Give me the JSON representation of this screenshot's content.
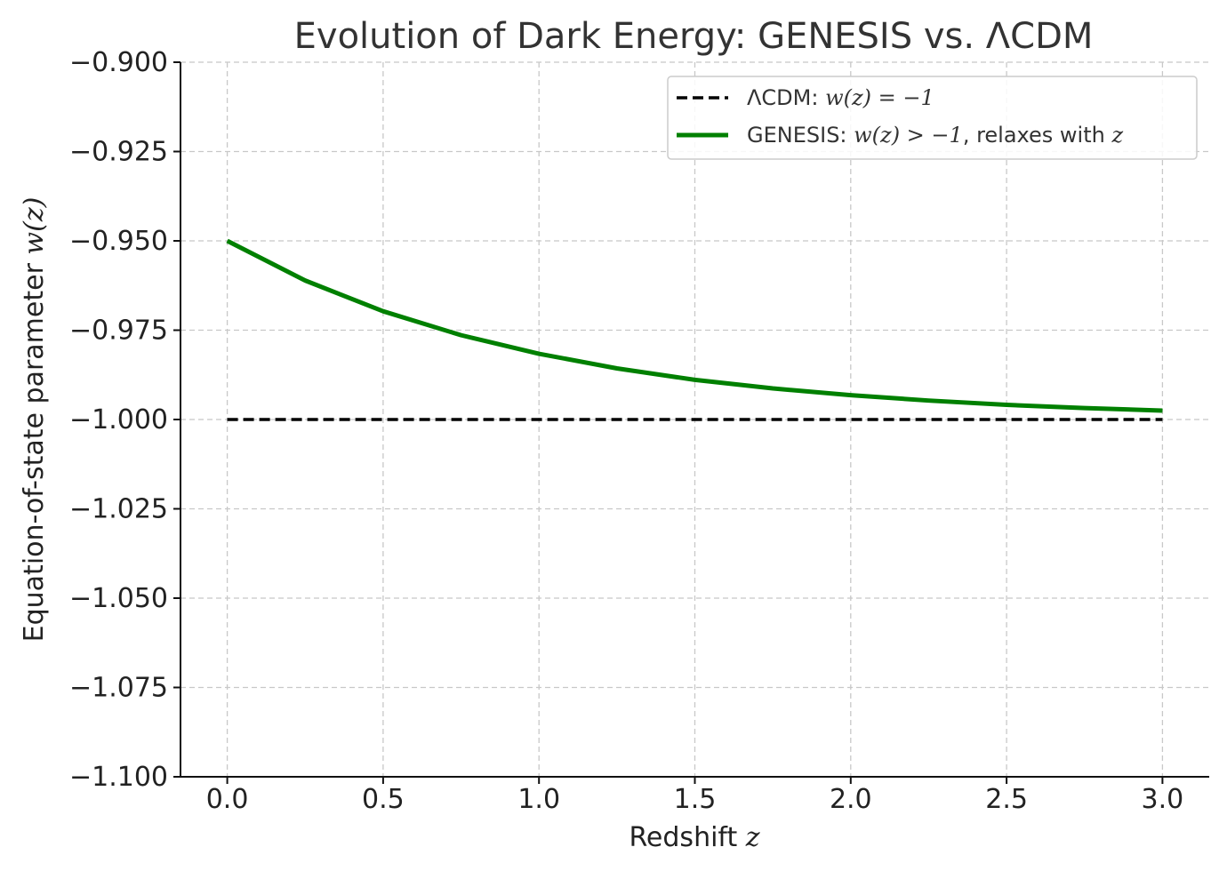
{
  "chart_data": {
    "type": "line",
    "title": "Evolution of Dark Energy: GENESIS vs. ΛCDM",
    "xlabel": "Redshift z",
    "xlabel_text": "Redshift ",
    "xlabel_var": "z",
    "ylabel": "Equation-of-state parameter w(z)",
    "ylabel_text": "Equation-of-state parameter ",
    "ylabel_var": "w(z)",
    "xlim": [
      -0.15,
      3.15
    ],
    "ylim": [
      -1.1,
      -0.9
    ],
    "x_ticks": [
      0.0,
      0.5,
      1.0,
      1.5,
      2.0,
      2.5,
      3.0
    ],
    "x_tick_labels": [
      "0.0",
      "0.5",
      "1.0",
      "1.5",
      "2.0",
      "2.5",
      "3.0"
    ],
    "y_ticks": [
      -0.9,
      -0.925,
      -0.95,
      -0.975,
      -1.0,
      -1.025,
      -1.05,
      -1.075,
      -1.1
    ],
    "y_tick_labels": [
      "−0.900",
      "−0.925",
      "−0.950",
      "−0.975",
      "−1.000",
      "−1.025",
      "−1.050",
      "−1.075",
      "−1.100"
    ],
    "grid": true,
    "legend_position": "top-right",
    "series": [
      {
        "name": "ΛCDM: w(z) = −1",
        "legend_prefix": "ΛCDM: ",
        "legend_math": "w(z) = −1",
        "color": "#000000",
        "style": "dashed",
        "x": [
          0.0,
          3.0
        ],
        "y": [
          -1.0,
          -1.0
        ]
      },
      {
        "name": "GENESIS: w(z) > −1, relaxes with z",
        "legend_prefix": "GENESIS: ",
        "legend_math": "w(z) > −1",
        "legend_suffix": ", relaxes with ",
        "legend_var": "z",
        "color": "#008000",
        "style": "solid",
        "x": [
          0.0,
          0.25,
          0.5,
          0.75,
          1.0,
          1.25,
          1.5,
          1.75,
          2.0,
          2.25,
          2.5,
          2.75,
          3.0
        ],
        "y": [
          -0.95,
          -0.9611,
          -0.9697,
          -0.9764,
          -0.9816,
          -0.9857,
          -0.9889,
          -0.9913,
          -0.9932,
          -0.9947,
          -0.9959,
          -0.9968,
          -0.9975
        ]
      }
    ]
  }
}
